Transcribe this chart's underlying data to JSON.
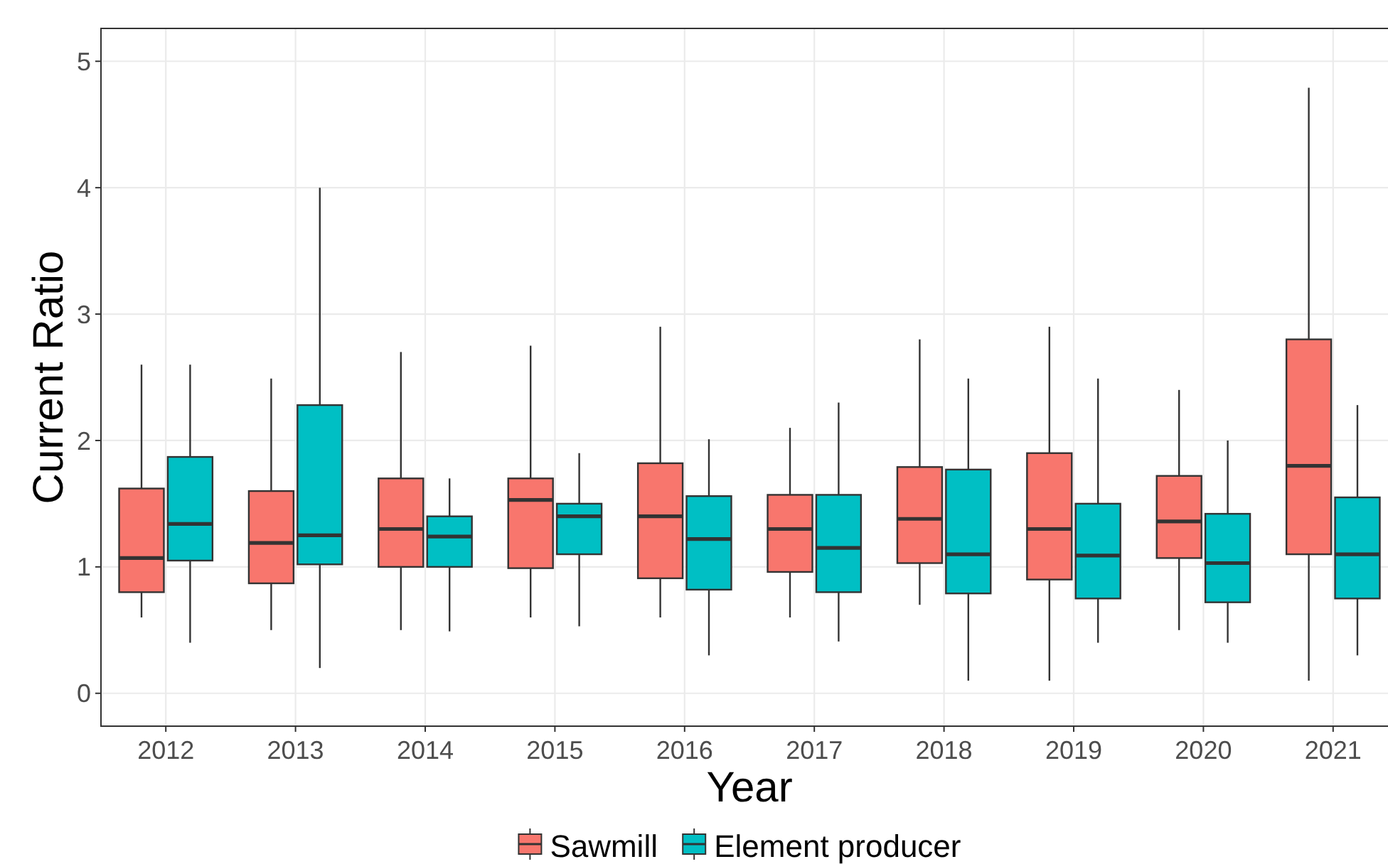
{
  "chart_data": {
    "type": "box",
    "xlabel": "Year",
    "ylabel": "Current Ratio",
    "categories": [
      "2012",
      "2013",
      "2014",
      "2015",
      "2016",
      "2017",
      "2018",
      "2019",
      "2020",
      "2021"
    ],
    "ylim": [
      -0.26,
      5.26
    ],
    "yticks": [
      0,
      1,
      2,
      3,
      4,
      5
    ],
    "grid": true,
    "legend": "bottom",
    "series": [
      {
        "name": "Sawmill",
        "color": "#f8766d",
        "boxes": [
          {
            "low": 0.6,
            "q1": 0.8,
            "median": 1.07,
            "q3": 1.62,
            "high": 2.6
          },
          {
            "low": 0.5,
            "q1": 0.87,
            "median": 1.19,
            "q3": 1.6,
            "high": 2.49
          },
          {
            "low": 0.5,
            "q1": 1.0,
            "median": 1.3,
            "q3": 1.7,
            "high": 2.7
          },
          {
            "low": 0.6,
            "q1": 0.99,
            "median": 1.53,
            "q3": 1.7,
            "high": 2.75
          },
          {
            "low": 0.6,
            "q1": 0.91,
            "median": 1.4,
            "q3": 1.82,
            "high": 2.9
          },
          {
            "low": 0.6,
            "q1": 0.96,
            "median": 1.3,
            "q3": 1.57,
            "high": 2.1
          },
          {
            "low": 0.7,
            "q1": 1.03,
            "median": 1.38,
            "q3": 1.79,
            "high": 2.8
          },
          {
            "low": 0.1,
            "q1": 0.9,
            "median": 1.3,
            "q3": 1.9,
            "high": 2.9
          },
          {
            "low": 0.5,
            "q1": 1.07,
            "median": 1.36,
            "q3": 1.72,
            "high": 2.4
          },
          {
            "low": 0.1,
            "q1": 1.1,
            "median": 1.8,
            "q3": 2.8,
            "high": 4.79
          }
        ]
      },
      {
        "name": "Element producer",
        "color": "#00bfc4",
        "boxes": [
          {
            "low": 0.4,
            "q1": 1.05,
            "median": 1.34,
            "q3": 1.87,
            "high": 2.6
          },
          {
            "low": 0.2,
            "q1": 1.02,
            "median": 1.25,
            "q3": 2.28,
            "high": 4.0
          },
          {
            "low": 0.49,
            "q1": 1.0,
            "median": 1.24,
            "q3": 1.4,
            "high": 1.7
          },
          {
            "low": 0.53,
            "q1": 1.1,
            "median": 1.4,
            "q3": 1.5,
            "high": 1.9
          },
          {
            "low": 0.3,
            "q1": 0.82,
            "median": 1.22,
            "q3": 1.56,
            "high": 2.01
          },
          {
            "low": 0.41,
            "q1": 0.8,
            "median": 1.15,
            "q3": 1.57,
            "high": 2.3
          },
          {
            "low": 0.1,
            "q1": 0.79,
            "median": 1.1,
            "q3": 1.77,
            "high": 2.49
          },
          {
            "low": 0.4,
            "q1": 0.75,
            "median": 1.09,
            "q3": 1.5,
            "high": 2.49
          },
          {
            "low": 0.4,
            "q1": 0.72,
            "median": 1.03,
            "q3": 1.42,
            "high": 2.0
          },
          {
            "low": 0.3,
            "q1": 0.75,
            "median": 1.1,
            "q3": 1.55,
            "high": 2.28
          }
        ]
      }
    ]
  }
}
